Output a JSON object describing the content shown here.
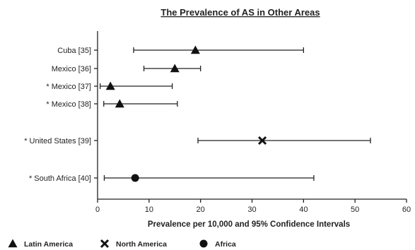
{
  "chart_data": {
    "type": "scatter",
    "title": "The Prevalence of AS in Other Areas",
    "xlabel": "Prevalence per 10,000 and 95% Confidence Intervals",
    "ylabel": "",
    "xlim": [
      0,
      60
    ],
    "xticks": [
      "0",
      "10",
      "20",
      "30",
      "40",
      "50",
      "60"
    ],
    "grid": false,
    "legend_position": "bottom",
    "rows": [
      {
        "label": "Cuba [35]",
        "value": 19,
        "lower": 7,
        "upper": 40,
        "group": "Latin America"
      },
      {
        "label": "Mexico [36]",
        "value": 15,
        "lower": 9,
        "upper": 20,
        "group": "Latin America"
      },
      {
        "label": "* Mexico [37]",
        "value": 2.5,
        "lower": 0.5,
        "upper": 14.5,
        "group": "Latin America"
      },
      {
        "label": "* Mexico [38]",
        "value": 4.3,
        "lower": 1.2,
        "upper": 15.5,
        "group": "Latin America"
      },
      {
        "label": "* United States [39]",
        "value": 32,
        "lower": 19.5,
        "upper": 53,
        "group": "North America"
      },
      {
        "label": "* South Africa [40]",
        "value": 7.3,
        "lower": 1.3,
        "upper": 42,
        "group": "Africa"
      }
    ],
    "legend": [
      {
        "name": "Latin America",
        "marker": "triangle"
      },
      {
        "name": "North America",
        "marker": "cross"
      },
      {
        "name": "Africa",
        "marker": "circle"
      }
    ]
  }
}
